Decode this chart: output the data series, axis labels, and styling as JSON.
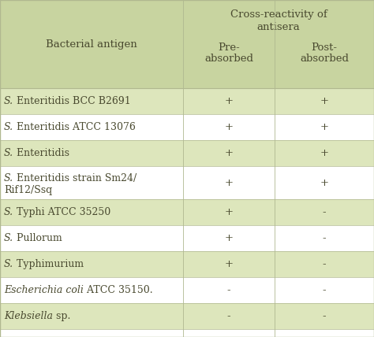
{
  "title_line1": "Cross-reactivity of",
  "title_line2": "antisera",
  "col_header1": "Bacterial antigen",
  "col_header2_1": "Pre-",
  "col_header2_2": "absorbed",
  "col_header3_1": "Post-",
  "col_header3_2": "absorbed",
  "rows": [
    {
      "label_italic": "S.",
      "label_rest": " Enteritidis BCC B2691",
      "line2": "",
      "pre": "+",
      "post": "+",
      "shaded": true
    },
    {
      "label_italic": "S.",
      "label_rest": " Enteritidis ATCC 13076",
      "line2": "",
      "pre": "+",
      "post": "+",
      "shaded": false
    },
    {
      "label_italic": "S.",
      "label_rest": " Enteritidis",
      "line2": "",
      "pre": "+",
      "post": "+",
      "shaded": true
    },
    {
      "label_italic": "S.",
      "label_rest": " Enteritidis strain Sm24/",
      "line2": "Rif12/Ssq",
      "pre": "+",
      "post": "+",
      "shaded": false
    },
    {
      "label_italic": "S.",
      "label_rest": " Typhi ATCC 35250",
      "line2": "",
      "pre": "+",
      "post": "-",
      "shaded": true
    },
    {
      "label_italic": "S.",
      "label_rest": " Pullorum",
      "line2": "",
      "pre": "+",
      "post": "-",
      "shaded": false
    },
    {
      "label_italic": "S.",
      "label_rest": " Typhimurium",
      "line2": "",
      "pre": "+",
      "post": "-",
      "shaded": true
    },
    {
      "label_italic": "Escherichia coli",
      "label_rest": " ATCC 35150.",
      "line2": "",
      "pre": "-",
      "post": "-",
      "shaded": false
    },
    {
      "label_italic": "Klebsiella",
      "label_rest": " sp.",
      "line2": "",
      "pre": "-",
      "post": "-",
      "shaded": true
    }
  ],
  "header_bg": "#c8d4a0",
  "shaded_bg": "#dde6bc",
  "white_bg": "#ffffff",
  "text_color": "#4a4a30",
  "border_color": "#b0b890",
  "font_size": 9.0,
  "header_font_size": 9.5,
  "fig_width": 4.74,
  "fig_height": 4.28,
  "dpi": 100
}
